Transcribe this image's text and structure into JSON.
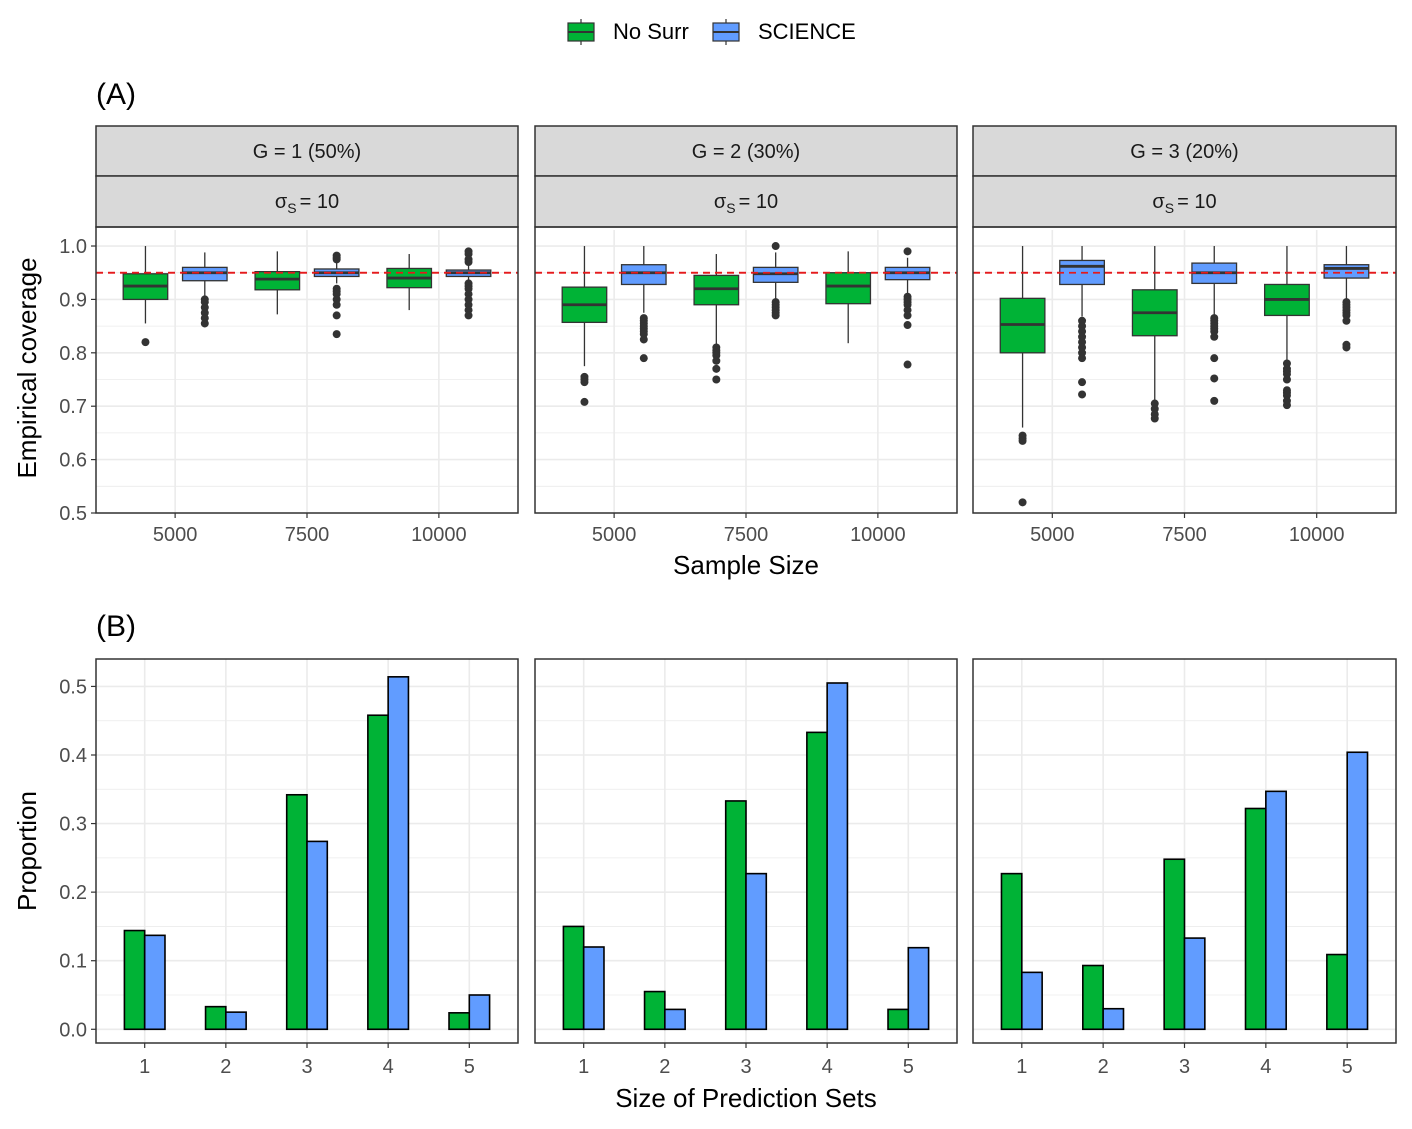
{
  "legend": {
    "items": [
      {
        "label": "No Surr",
        "color": "#00b336"
      },
      {
        "label": "SCIENCE",
        "color": "#619cff"
      }
    ]
  },
  "colors": {
    "no_surr": "#00b336",
    "science": "#619cff",
    "reference_line": "#e41a1c",
    "strip_bg": "#d9d9d9",
    "grid": "#ebebeb",
    "outline": "#333333"
  },
  "chart_data": [
    {
      "id": "A",
      "panel_label": "(A)",
      "type": "box",
      "xlabel": "Sample Size",
      "ylabel": "Empirical coverage",
      "ylim": [
        0.5,
        1.03
      ],
      "yticks": [
        "0.5",
        "0.6",
        "0.7",
        "0.8",
        "0.9",
        "1.0"
      ],
      "categories": [
        "5000",
        "7500",
        "10000"
      ],
      "reference_line": 0.95,
      "facets": [
        {
          "strip": "G = 1 (50%)",
          "sigma_label": "σ",
          "sigma_sub": "S",
          "sigma_value": "= 10",
          "boxes": [
            {
              "group": "No Surr",
              "cat": "5000",
              "q1": 0.9,
              "median": 0.925,
              "q3": 0.948,
              "lo": 0.855,
              "hi": 1.0,
              "outliers": [
                0.82
              ]
            },
            {
              "group": "SCIENCE",
              "cat": "5000",
              "q1": 0.935,
              "median": 0.95,
              "q3": 0.96,
              "lo": 0.905,
              "hi": 0.988,
              "outliers": [
                0.9,
                0.895,
                0.885,
                0.875,
                0.865,
                0.855
              ]
            },
            {
              "group": "No Surr",
              "cat": "7500",
              "q1": 0.918,
              "median": 0.938,
              "q3": 0.952,
              "lo": 0.872,
              "hi": 0.99,
              "outliers": []
            },
            {
              "group": "SCIENCE",
              "cat": "7500",
              "q1": 0.943,
              "median": 0.95,
              "q3": 0.957,
              "lo": 0.93,
              "hi": 0.972,
              "outliers": [
                0.982,
                0.978,
                0.975,
                0.92,
                0.915,
                0.91,
                0.9,
                0.89,
                0.87,
                0.835
              ]
            },
            {
              "group": "No Surr",
              "cat": "10000",
              "q1": 0.922,
              "median": 0.94,
              "q3": 0.958,
              "lo": 0.88,
              "hi": 0.985,
              "outliers": []
            },
            {
              "group": "SCIENCE",
              "cat": "10000",
              "q1": 0.943,
              "median": 0.95,
              "q3": 0.955,
              "lo": 0.935,
              "hi": 0.965,
              "outliers": [
                0.99,
                0.985,
                0.975,
                0.97,
                0.93,
                0.925,
                0.92,
                0.91,
                0.9,
                0.89,
                0.88,
                0.87
              ]
            }
          ]
        },
        {
          "strip": "G = 2 (30%)",
          "sigma_label": "σ",
          "sigma_sub": "S",
          "sigma_value": "= 10",
          "boxes": [
            {
              "group": "No Surr",
              "cat": "5000",
              "q1": 0.857,
              "median": 0.89,
              "q3": 0.923,
              "lo": 0.775,
              "hi": 1.0,
              "outliers": [
                0.755,
                0.75,
                0.745,
                0.708
              ]
            },
            {
              "group": "SCIENCE",
              "cat": "5000",
              "q1": 0.928,
              "median": 0.95,
              "q3": 0.965,
              "lo": 0.875,
              "hi": 1.0,
              "outliers": [
                0.865,
                0.86,
                0.855,
                0.85,
                0.845,
                0.84,
                0.835,
                0.825,
                0.79
              ]
            },
            {
              "group": "No Surr",
              "cat": "7500",
              "q1": 0.89,
              "median": 0.92,
              "q3": 0.945,
              "lo": 0.815,
              "hi": 0.985,
              "outliers": [
                0.81,
                0.805,
                0.8,
                0.795,
                0.785,
                0.77,
                0.75
              ]
            },
            {
              "group": "SCIENCE",
              "cat": "7500",
              "q1": 0.932,
              "median": 0.948,
              "q3": 0.96,
              "lo": 0.9,
              "hi": 0.988,
              "outliers": [
                1.0,
                0.895,
                0.89,
                0.885,
                0.88,
                0.875,
                0.87
              ]
            },
            {
              "group": "No Surr",
              "cat": "10000",
              "q1": 0.892,
              "median": 0.925,
              "q3": 0.95,
              "lo": 0.818,
              "hi": 0.99,
              "outliers": []
            },
            {
              "group": "SCIENCE",
              "cat": "10000",
              "q1": 0.937,
              "median": 0.95,
              "q3": 0.96,
              "lo": 0.91,
              "hi": 0.978,
              "outliers": [
                0.99,
                0.905,
                0.9,
                0.895,
                0.89,
                0.88,
                0.87,
                0.852,
                0.778
              ]
            }
          ]
        },
        {
          "strip": "G = 3 (20%)",
          "sigma_label": "σ",
          "sigma_sub": "S",
          "sigma_value": "= 10",
          "boxes": [
            {
              "group": "No Surr",
              "cat": "5000",
              "q1": 0.8,
              "median": 0.853,
              "q3": 0.902,
              "lo": 0.66,
              "hi": 1.0,
              "outliers": [
                0.645,
                0.64,
                0.635,
                0.52
              ]
            },
            {
              "group": "SCIENCE",
              "cat": "5000",
              "q1": 0.928,
              "median": 0.962,
              "q3": 0.973,
              "lo": 0.868,
              "hi": 1.0,
              "outliers": [
                0.86,
                0.85,
                0.84,
                0.83,
                0.82,
                0.81,
                0.8,
                0.79,
                0.745,
                0.722
              ]
            },
            {
              "group": "No Surr",
              "cat": "7500",
              "q1": 0.832,
              "median": 0.875,
              "q3": 0.918,
              "lo": 0.71,
              "hi": 1.0,
              "outliers": [
                0.705,
                0.695,
                0.685,
                0.677
              ]
            },
            {
              "group": "SCIENCE",
              "cat": "7500",
              "q1": 0.93,
              "median": 0.95,
              "q3": 0.968,
              "lo": 0.87,
              "hi": 1.0,
              "outliers": [
                0.865,
                0.86,
                0.855,
                0.85,
                0.845,
                0.84,
                0.83,
                0.79,
                0.752,
                0.71
              ]
            },
            {
              "group": "No Surr",
              "cat": "10000",
              "q1": 0.87,
              "median": 0.9,
              "q3": 0.928,
              "lo": 0.785,
              "hi": 1.0,
              "outliers": [
                0.78,
                0.77,
                0.765,
                0.76,
                0.75,
                0.73,
                0.725,
                0.72,
                0.71,
                0.702
              ]
            },
            {
              "group": "SCIENCE",
              "cat": "10000",
              "q1": 0.94,
              "median": 0.958,
              "q3": 0.965,
              "lo": 0.9,
              "hi": 1.0,
              "outliers": [
                0.895,
                0.89,
                0.885,
                0.88,
                0.875,
                0.87,
                0.86,
                0.815,
                0.81
              ]
            }
          ]
        }
      ]
    },
    {
      "id": "B",
      "panel_label": "(B)",
      "type": "bar",
      "xlabel": "Size of Prediction Sets",
      "ylabel": "Proportion",
      "ylim": [
        -0.02,
        0.54
      ],
      "yticks": [
        "0.0",
        "0.1",
        "0.2",
        "0.3",
        "0.4",
        "0.5"
      ],
      "categories": [
        "1",
        "2",
        "3",
        "4",
        "5"
      ],
      "facets": [
        {
          "series": [
            {
              "name": "No Surr",
              "values": [
                0.144,
                0.033,
                0.342,
                0.458,
                0.024
              ]
            },
            {
              "name": "SCIENCE",
              "values": [
                0.137,
                0.025,
                0.274,
                0.514,
                0.05
              ]
            }
          ]
        },
        {
          "series": [
            {
              "name": "No Surr",
              "values": [
                0.15,
                0.055,
                0.333,
                0.433,
                0.029
              ]
            },
            {
              "name": "SCIENCE",
              "values": [
                0.12,
                0.029,
                0.227,
                0.505,
                0.119
              ]
            }
          ]
        },
        {
          "series": [
            {
              "name": "No Surr",
              "values": [
                0.227,
                0.093,
                0.248,
                0.322,
                0.109
              ]
            },
            {
              "name": "SCIENCE",
              "values": [
                0.083,
                0.03,
                0.133,
                0.347,
                0.404
              ]
            }
          ]
        }
      ]
    }
  ]
}
